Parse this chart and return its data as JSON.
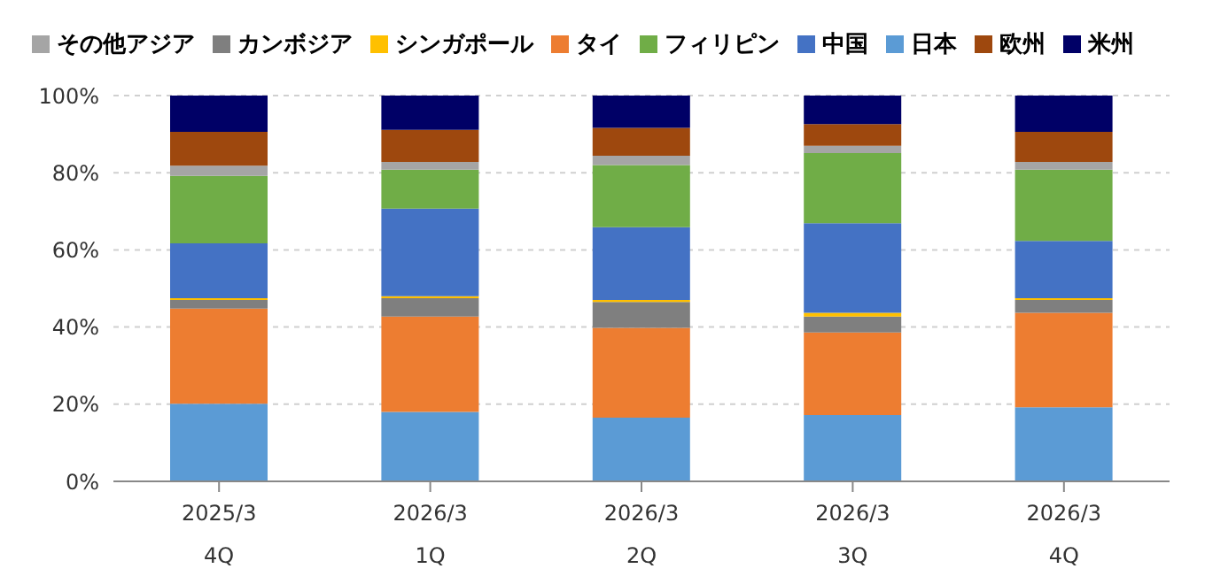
{
  "chart_data": {
    "type": "bar",
    "stacked": true,
    "categories": [
      "2025/3\n4Q",
      "2026/3\n1Q",
      "2026/3\n2Q",
      "2026/3\n3Q",
      "2026/3\n4Q"
    ],
    "series": [
      {
        "name": "日本",
        "color": "#5b9bd5",
        "values": [
          20.1,
          18.0,
          16.5,
          17.2,
          19.2
        ]
      },
      {
        "name": "タイ",
        "color": "#ed7d31",
        "values": [
          24.7,
          24.7,
          23.3,
          21.4,
          24.5
        ]
      },
      {
        "name": "カンボジア",
        "color": "#7f7f7f",
        "values": [
          2.2,
          4.8,
          6.7,
          4.1,
          3.3
        ]
      },
      {
        "name": "シンガポール",
        "color": "#ffc000",
        "values": [
          0.5,
          0.5,
          0.5,
          1.0,
          0.5
        ]
      },
      {
        "name": "中国",
        "color": "#4472c4",
        "values": [
          14.2,
          22.7,
          18.9,
          23.2,
          14.8
        ]
      },
      {
        "name": "フィリピン",
        "color": "#70ad47",
        "values": [
          17.5,
          10.1,
          16.1,
          18.2,
          18.5
        ]
      },
      {
        "name": "その他アジア",
        "color": "#a5a5a5",
        "values": [
          2.6,
          2.0,
          2.4,
          1.9,
          2.0
        ]
      },
      {
        "name": "欧州",
        "color": "#9e480e",
        "values": [
          8.8,
          8.3,
          7.2,
          5.6,
          7.8
        ]
      },
      {
        "name": "米州",
        "color": "#000066",
        "values": [
          9.4,
          8.9,
          8.4,
          7.4,
          9.4
        ]
      }
    ],
    "ylim": [
      0,
      100
    ],
    "yticks": [
      {
        "value": 0,
        "label": "0%"
      },
      {
        "value": 20,
        "label": "20%"
      },
      {
        "value": 40,
        "label": "40%"
      },
      {
        "value": 60,
        "label": "60%"
      },
      {
        "value": 80,
        "label": "80%"
      },
      {
        "value": 100,
        "label": "100%"
      }
    ],
    "grid": "y",
    "legend": "top"
  }
}
